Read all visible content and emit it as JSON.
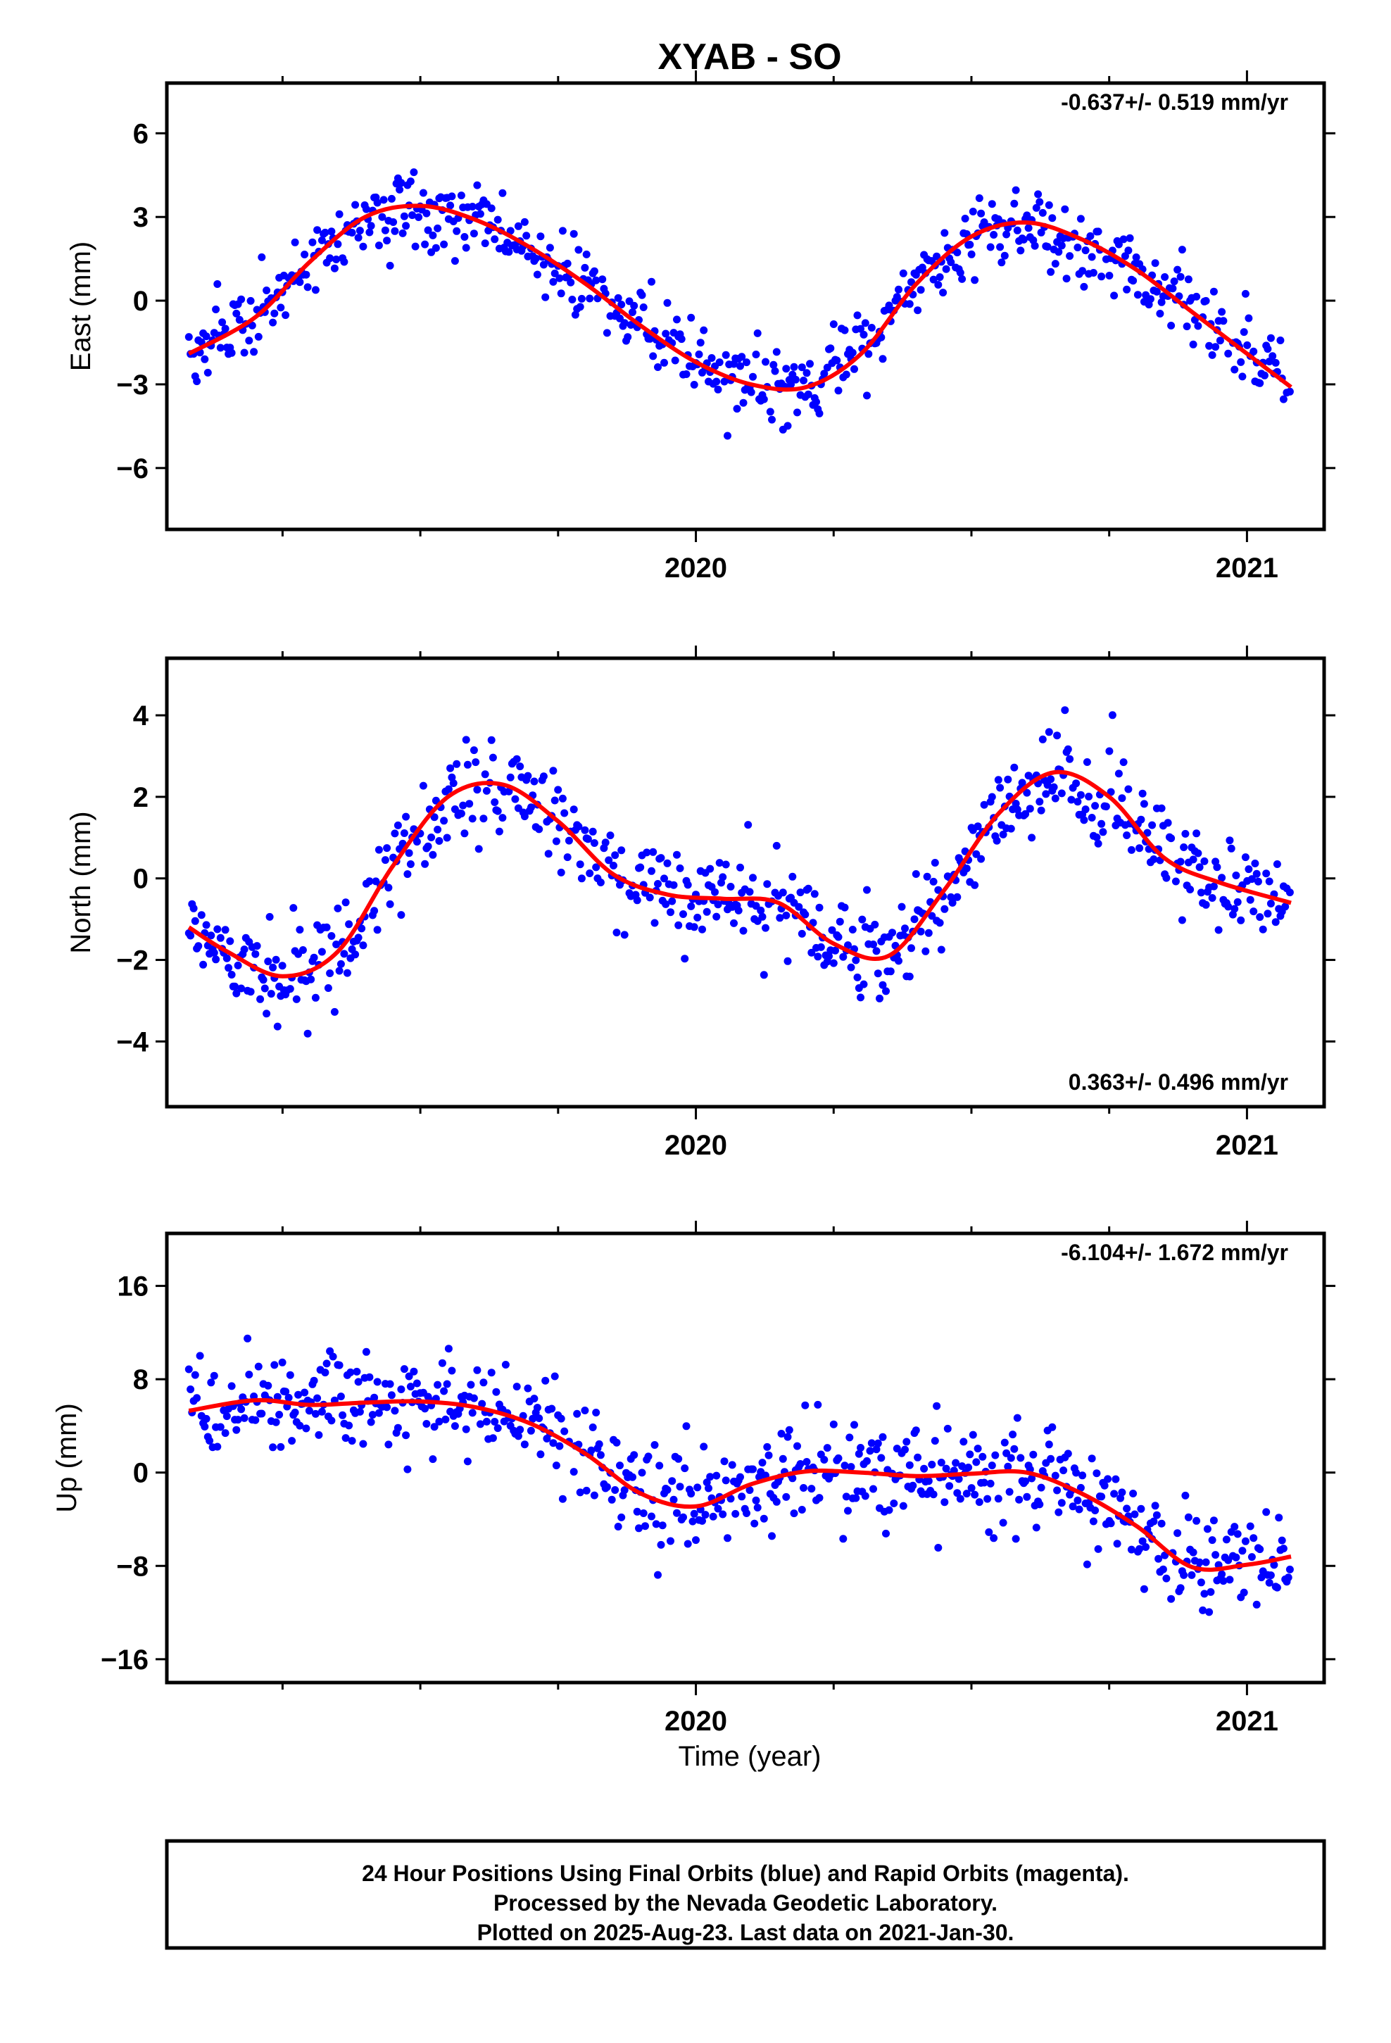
{
  "title": "XYAB - SO",
  "xlabel": "Time (year)",
  "footer": {
    "line1": "24 Hour Positions Using Final Orbits (blue) and Rapid Orbits (magenta).",
    "line2": "Processed by the Nevada Geodetic Laboratory.",
    "line3": "Plotted on 2025-Aug-23. Last data on 2021-Jan-30."
  },
  "colors": {
    "points": "#0000ff",
    "fit": "#ff0000",
    "frame": "#000000"
  },
  "chart_data": [
    {
      "type": "scatter",
      "ylabel": "East (mm)",
      "rate_label": "-0.637+/- 0.519 mm/yr",
      "rate_position": "top-right",
      "xlim": [
        2019.04,
        2021.14
      ],
      "ylim": [
        -8.2,
        7.8
      ],
      "yticks": [
        -6,
        -3,
        0,
        3,
        6
      ],
      "yticklabels": [
        "−6",
        "−3",
        "0",
        "3",
        "6"
      ],
      "xticks": [
        2020,
        2021
      ],
      "xticklabels": [
        "2020",
        "2021"
      ],
      "fit": {
        "x": [
          2019.08,
          2019.2,
          2019.3,
          2019.4,
          2019.5,
          2019.6,
          2019.7,
          2019.8,
          2019.9,
          2020.0,
          2020.1,
          2020.2,
          2020.3,
          2020.4,
          2020.5,
          2020.6,
          2020.7,
          2020.8,
          2020.9,
          2021.0,
          2021.08
        ],
        "y": [
          -1.9,
          -0.6,
          1.4,
          3.0,
          3.4,
          2.9,
          1.9,
          0.6,
          -0.9,
          -2.2,
          -3.0,
          -3.1,
          -1.9,
          0.6,
          2.3,
          2.8,
          2.2,
          1.1,
          -0.4,
          -1.9,
          -3.1
        ]
      },
      "amp": 3.3,
      "phase": 0.22,
      "trend": -0.637,
      "noise": 1.2
    },
    {
      "type": "scatter",
      "ylabel": "North (mm)",
      "rate_label": "0.363+/- 0.496 mm/yr",
      "rate_position": "bottom-right",
      "xlim": [
        2019.04,
        2021.14
      ],
      "ylim": [
        -5.6,
        5.4
      ],
      "yticks": [
        -4,
        -2,
        0,
        2,
        4
      ],
      "yticklabels": [
        "−4",
        "−2",
        "0",
        "2",
        "4"
      ],
      "xticks": [
        2020,
        2021
      ],
      "xticklabels": [
        "2020",
        "2021"
      ],
      "fit": {
        "x": [
          2019.08,
          2019.15,
          2019.25,
          2019.35,
          2019.45,
          2019.55,
          2019.65,
          2019.75,
          2019.85,
          2019.95,
          2020.05,
          2020.15,
          2020.25,
          2020.35,
          2020.45,
          2020.55,
          2020.65,
          2020.75,
          2020.85,
          2020.95,
          2021.08
        ],
        "y": [
          -1.2,
          -1.8,
          -2.4,
          -1.8,
          0.3,
          2.0,
          2.3,
          1.4,
          0.1,
          -0.4,
          -0.5,
          -0.6,
          -1.6,
          -1.9,
          -0.3,
          1.6,
          2.6,
          2.0,
          0.5,
          -0.1,
          -0.6
        ]
      },
      "amp": 2.3,
      "phase": 0.02,
      "trend": 0.363,
      "noise": 1.0
    },
    {
      "type": "scatter",
      "ylabel": "Up (mm)",
      "rate_label": "-6.104+/- 1.672 mm/yr",
      "rate_position": "top-right",
      "xlim": [
        2019.04,
        2021.14
      ],
      "ylim": [
        -18,
        20.5
      ],
      "yticks": [
        -16,
        -8,
        0,
        8,
        16
      ],
      "yticklabels": [
        "−16",
        "−8",
        "0",
        "8",
        "16"
      ],
      "xticks": [
        2020,
        2021
      ],
      "xticklabels": [
        "2020",
        "2021"
      ],
      "fit": {
        "x": [
          2019.08,
          2019.2,
          2019.3,
          2019.4,
          2019.5,
          2019.6,
          2019.7,
          2019.8,
          2019.9,
          2020.0,
          2020.1,
          2020.2,
          2020.3,
          2020.4,
          2020.5,
          2020.6,
          2020.7,
          2020.8,
          2020.9,
          2021.0,
          2021.08
        ],
        "y": [
          5.3,
          6.2,
          5.8,
          6.0,
          6.1,
          5.6,
          4.2,
          1.6,
          -1.8,
          -2.9,
          -1.0,
          0.1,
          0.0,
          -0.3,
          -0.1,
          0.0,
          -1.8,
          -4.6,
          -8.1,
          -7.9,
          -7.2
        ]
      },
      "amp": 4.0,
      "phase": 0.1,
      "trend": -6.104,
      "noise": 3.8
    }
  ]
}
